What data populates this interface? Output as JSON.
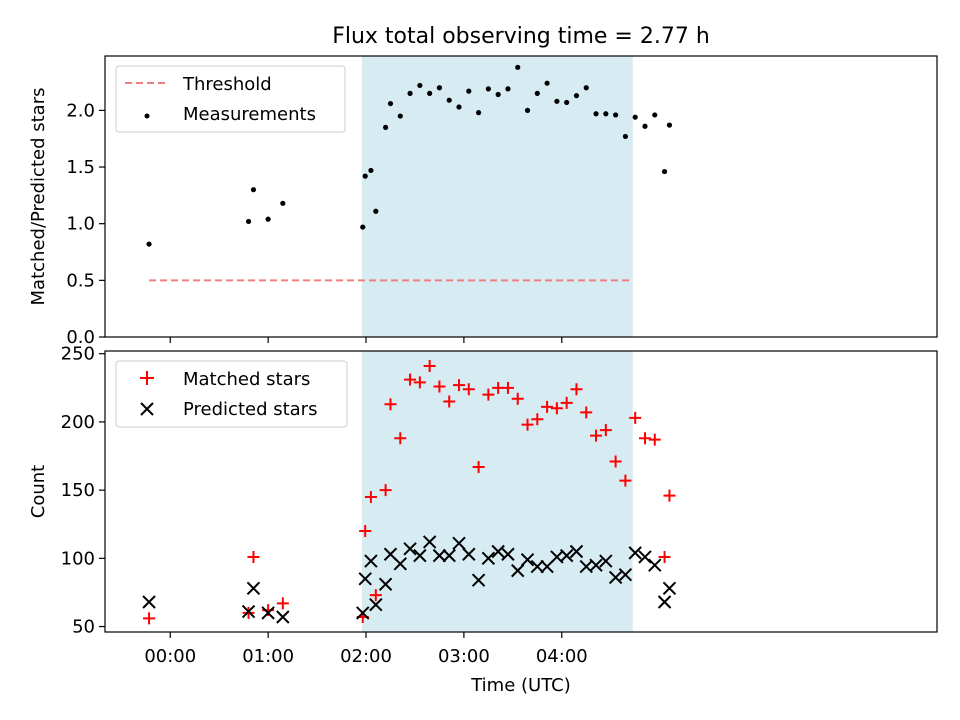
{
  "chart_data": {
    "title": "Flux total observing time = 2.77 h",
    "xlabel": "Time (UTC)",
    "x_unit": "minutes after 00:00 UTC",
    "xlim": [
      -40,
      470
    ],
    "x_ticks": [
      {
        "value": 0,
        "label": "00:00"
      },
      {
        "value": 60,
        "label": "01:00"
      },
      {
        "value": 120,
        "label": "02:00"
      },
      {
        "value": 180,
        "label": "03:00"
      },
      {
        "value": 240,
        "label": "04:00"
      }
    ],
    "observing_window": {
      "start": 117.5,
      "end": 283.5,
      "color": "#add8e6"
    },
    "panels": [
      {
        "type": "scatter",
        "ylabel": "Matched/Predicted stars",
        "ylim": [
          0,
          2.48
        ],
        "y_ticks": [
          "0.0",
          "0.5",
          "1.0",
          "1.5",
          "2.0"
        ],
        "legend": {
          "position": "top-left",
          "entries": [
            "Threshold",
            "Measurements"
          ]
        },
        "threshold": {
          "name": "Threshold",
          "value": 0.5,
          "x_range": [
            -13,
            283.5
          ],
          "color": "#f08080"
        },
        "series": [
          {
            "name": "Measurements",
            "marker": "dot",
            "color": "#000000",
            "points": [
              [
                -13,
                0.82
              ],
              [
                48,
                1.02
              ],
              [
                51,
                1.3
              ],
              [
                60,
                1.04
              ],
              [
                69,
                1.18
              ],
              [
                118,
                0.97
              ],
              [
                119.5,
                1.42
              ],
              [
                123,
                1.47
              ],
              [
                126,
                1.11
              ],
              [
                132,
                1.85
              ],
              [
                135,
                2.06
              ],
              [
                141,
                1.95
              ],
              [
                147,
                2.15
              ],
              [
                153,
                2.22
              ],
              [
                159,
                2.15
              ],
              [
                165,
                2.2
              ],
              [
                171,
                2.09
              ],
              [
                177,
                2.03
              ],
              [
                183,
                2.17
              ],
              [
                189,
                1.98
              ],
              [
                195,
                2.19
              ],
              [
                201,
                2.14
              ],
              [
                207,
                2.19
              ],
              [
                213,
                2.38
              ],
              [
                219,
                2.0
              ],
              [
                225,
                2.15
              ],
              [
                231,
                2.24
              ],
              [
                237,
                2.08
              ],
              [
                243,
                2.07
              ],
              [
                249,
                2.13
              ],
              [
                255,
                2.2
              ],
              [
                261,
                1.97
              ],
              [
                267,
                1.97
              ],
              [
                273,
                1.96
              ],
              [
                279,
                1.77
              ],
              [
                285,
                1.94
              ],
              [
                291,
                1.86
              ],
              [
                297,
                1.96
              ],
              [
                303,
                1.46
              ],
              [
                306,
                1.87
              ]
            ]
          }
        ]
      },
      {
        "type": "scatter",
        "ylabel": "Count",
        "ylim": [
          46,
          252
        ],
        "y_ticks": [
          "50",
          "100",
          "150",
          "200",
          "250"
        ],
        "legend": {
          "position": "top-left",
          "entries": [
            "Matched stars",
            "Predicted stars"
          ]
        },
        "series": [
          {
            "name": "Matched stars",
            "marker": "plus",
            "color": "#ff0000",
            "points": [
              [
                -13,
                56
              ],
              [
                48,
                60
              ],
              [
                51,
                101
              ],
              [
                60,
                62
              ],
              [
                69,
                67
              ],
              [
                118,
                57
              ],
              [
                119.5,
                120
              ],
              [
                123,
                145
              ],
              [
                126,
                73
              ],
              [
                132,
                150
              ],
              [
                135,
                213
              ],
              [
                141,
                188
              ],
              [
                147,
                231
              ],
              [
                153,
                229
              ],
              [
                159,
                241
              ],
              [
                165,
                226
              ],
              [
                171,
                215
              ],
              [
                177,
                227
              ],
              [
                183,
                224
              ],
              [
                189,
                167
              ],
              [
                195,
                220
              ],
              [
                201,
                225
              ],
              [
                207,
                225
              ],
              [
                213,
                217
              ],
              [
                219,
                198
              ],
              [
                225,
                202
              ],
              [
                231,
                211
              ],
              [
                237,
                210
              ],
              [
                243,
                214
              ],
              [
                249,
                224
              ],
              [
                255,
                207
              ],
              [
                261,
                190
              ],
              [
                267,
                194
              ],
              [
                273,
                171
              ],
              [
                279,
                157
              ],
              [
                285,
                203
              ],
              [
                291,
                188
              ],
              [
                297,
                187
              ],
              [
                303,
                101
              ],
              [
                306,
                146
              ]
            ]
          },
          {
            "name": "Predicted stars",
            "marker": "x",
            "color": "#000000",
            "points": [
              [
                -13,
                68
              ],
              [
                48,
                61
              ],
              [
                51,
                78
              ],
              [
                60,
                60
              ],
              [
                69,
                57
              ],
              [
                118,
                60
              ],
              [
                119.5,
                85
              ],
              [
                123,
                98
              ],
              [
                126,
                66
              ],
              [
                132,
                81
              ],
              [
                135,
                103
              ],
              [
                141,
                96
              ],
              [
                147,
                107
              ],
              [
                153,
                102
              ],
              [
                159,
                112
              ],
              [
                165,
                102
              ],
              [
                171,
                102
              ],
              [
                177,
                111
              ],
              [
                183,
                103
              ],
              [
                189,
                84
              ],
              [
                195,
                100
              ],
              [
                201,
                105
              ],
              [
                207,
                103
              ],
              [
                213,
                91
              ],
              [
                219,
                99
              ],
              [
                225,
                94
              ],
              [
                231,
                94
              ],
              [
                237,
                101
              ],
              [
                243,
                102
              ],
              [
                249,
                105
              ],
              [
                255,
                94
              ],
              [
                261,
                95
              ],
              [
                267,
                98
              ],
              [
                273,
                86
              ],
              [
                279,
                88
              ],
              [
                285,
                104
              ],
              [
                291,
                101
              ],
              [
                297,
                95
              ],
              [
                303,
                68
              ],
              [
                306,
                78
              ]
            ]
          }
        ]
      }
    ]
  }
}
